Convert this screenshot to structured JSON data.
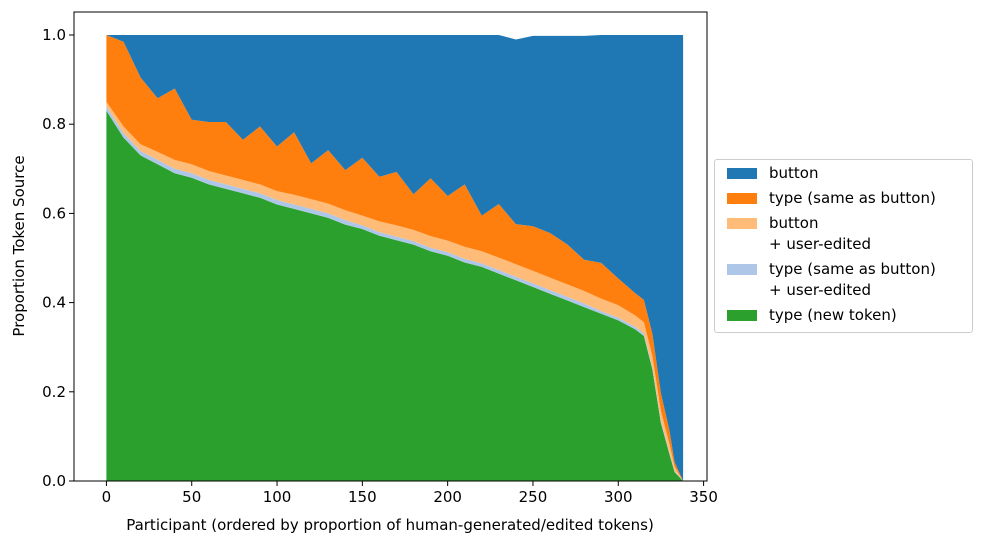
{
  "chart_data": {
    "type": "area",
    "stacked": true,
    "xlabel": "Participant (ordered by proportion of human-generated/edited tokens)",
    "ylabel": "Proportion Token Source",
    "xlim": [
      -19,
      352
    ],
    "ylim": [
      0.0,
      1.0
    ],
    "xticks": [
      "0",
      "50",
      "100",
      "150",
      "200",
      "250",
      "300",
      "350"
    ],
    "xtick_values": [
      0,
      50,
      100,
      150,
      200,
      250,
      300,
      350
    ],
    "yticks": [
      "0.0",
      "0.2",
      "0.4",
      "0.6",
      "0.8",
      "1.0"
    ],
    "ytick_values": [
      0.0,
      0.2,
      0.4,
      0.6,
      0.8,
      1.0
    ],
    "grid": false,
    "legend_position": "outside-right",
    "x": [
      0,
      10,
      20,
      30,
      40,
      50,
      60,
      70,
      80,
      90,
      100,
      110,
      120,
      130,
      140,
      150,
      160,
      170,
      180,
      190,
      200,
      210,
      220,
      230,
      240,
      250,
      260,
      270,
      280,
      290,
      300,
      310,
      315,
      320,
      325,
      330,
      333,
      338
    ],
    "series": [
      {
        "name": "type (new token)",
        "color": "#2ca02c",
        "values": [
          0.83,
          0.77,
          0.73,
          0.71,
          0.69,
          0.68,
          0.665,
          0.655,
          0.645,
          0.635,
          0.62,
          0.61,
          0.6,
          0.59,
          0.575,
          0.565,
          0.55,
          0.54,
          0.53,
          0.515,
          0.505,
          0.49,
          0.48,
          0.465,
          0.45,
          0.435,
          0.42,
          0.405,
          0.39,
          0.375,
          0.36,
          0.34,
          0.325,
          0.25,
          0.13,
          0.06,
          0.02,
          0.0
        ]
      },
      {
        "name": "type (same as button)\n+ user-edited",
        "color": "#aec7e8",
        "values": [
          0.01,
          0.01,
          0.01,
          0.01,
          0.01,
          0.01,
          0.01,
          0.01,
          0.01,
          0.01,
          0.01,
          0.01,
          0.01,
          0.01,
          0.01,
          0.008,
          0.008,
          0.008,
          0.008,
          0.008,
          0.008,
          0.008,
          0.008,
          0.008,
          0.008,
          0.008,
          0.008,
          0.008,
          0.008,
          0.006,
          0.006,
          0.006,
          0.006,
          0.005,
          0.005,
          0.003,
          0.002,
          0.0
        ]
      },
      {
        "name": "button\n+ user-edited",
        "color": "#ffbb78",
        "values": [
          0.01,
          0.015,
          0.015,
          0.018,
          0.02,
          0.02,
          0.02,
          0.02,
          0.02,
          0.02,
          0.02,
          0.022,
          0.022,
          0.022,
          0.022,
          0.022,
          0.024,
          0.025,
          0.025,
          0.026,
          0.026,
          0.027,
          0.027,
          0.028,
          0.028,
          0.028,
          0.028,
          0.028,
          0.028,
          0.028,
          0.028,
          0.025,
          0.025,
          0.025,
          0.022,
          0.02,
          0.01,
          0.0
        ]
      },
      {
        "name": "type (same as button)",
        "color": "#ff7f0e",
        "values": [
          0.15,
          0.19,
          0.15,
          0.12,
          0.16,
          0.1,
          0.11,
          0.12,
          0.09,
          0.13,
          0.1,
          0.14,
          0.08,
          0.12,
          0.09,
          0.13,
          0.1,
          0.12,
          0.08,
          0.13,
          0.1,
          0.14,
          0.08,
          0.12,
          0.09,
          0.1,
          0.1,
          0.09,
          0.07,
          0.08,
          0.06,
          0.05,
          0.05,
          0.05,
          0.04,
          0.03,
          0.01,
          0.0
        ]
      },
      {
        "name": "button",
        "color": "#1f77b4",
        "values": [
          0.0,
          0.015,
          0.095,
          0.142,
          0.12,
          0.19,
          0.195,
          0.195,
          0.235,
          0.205,
          0.25,
          0.218,
          0.288,
          0.258,
          0.303,
          0.275,
          0.318,
          0.307,
          0.357,
          0.321,
          0.361,
          0.335,
          0.405,
          0.379,
          0.414,
          0.427,
          0.442,
          0.467,
          0.502,
          0.511,
          0.546,
          0.579,
          0.594,
          0.67,
          0.803,
          0.887,
          0.958,
          1.0
        ]
      }
    ]
  },
  "legend": {
    "items": [
      {
        "label": "button",
        "color": "#1f77b4"
      },
      {
        "label": "type (same as button)",
        "color": "#ff7f0e"
      },
      {
        "label": "button\n+ user-edited",
        "color": "#ffbb78"
      },
      {
        "label": "type (same as button)\n+ user-edited",
        "color": "#aec7e8"
      },
      {
        "label": "type (new token)",
        "color": "#2ca02c"
      }
    ]
  }
}
